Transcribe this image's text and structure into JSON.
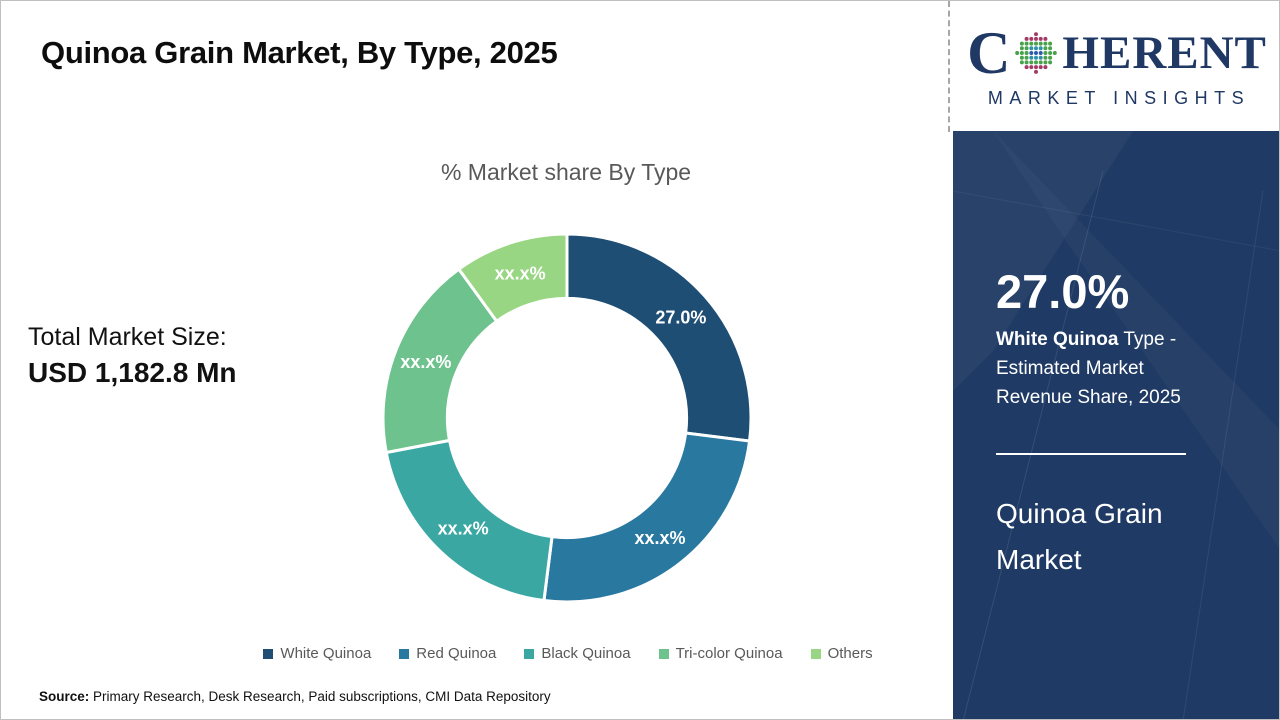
{
  "slide": {
    "title": "Quinoa Grain Market, By Type, 2025"
  },
  "logo": {
    "word_start": "C",
    "word_end": "HERENT",
    "subtitle": "MARKET INSIGHTS"
  },
  "total_market": {
    "label": "Total Market Size:",
    "value": "USD 1,182.8 Mn"
  },
  "sidebar": {
    "stat_value": "27.0%",
    "stat_bold": "White Quinoa",
    "stat_rest": " Type - Estimated Market Revenue Share, 2025",
    "market_name": "Quinoa Grain Market"
  },
  "source": {
    "label": "Source:",
    "text": " Primary Research, Desk Research, Paid subscriptions, CMI Data Repository"
  },
  "colors": {
    "sidebar_bg": "#1F3A64",
    "logo_navy": "#1F3864",
    "muted_text": "#595959"
  },
  "chart_data": {
    "type": "pie",
    "subtype": "donut",
    "title": "% Market share By Type",
    "categories": [
      "White Quinoa",
      "Red Quinoa",
      "Black Quinoa",
      "Tri-color Quinoa",
      "Others"
    ],
    "values": [
      27.0,
      25.0,
      20.0,
      18.0,
      10.0
    ],
    "data_labels": [
      "27.0%",
      "xx.x%",
      "xx.x%",
      "xx.x%",
      "xx.x%"
    ],
    "colors": [
      "#1F4E74",
      "#2878A0",
      "#3AA7A3",
      "#6EC28D",
      "#98D683"
    ],
    "start_angle_deg": 0,
    "hole_ratio": 0.65,
    "label_color": "#FFFFFF",
    "legend_position": "bottom"
  }
}
